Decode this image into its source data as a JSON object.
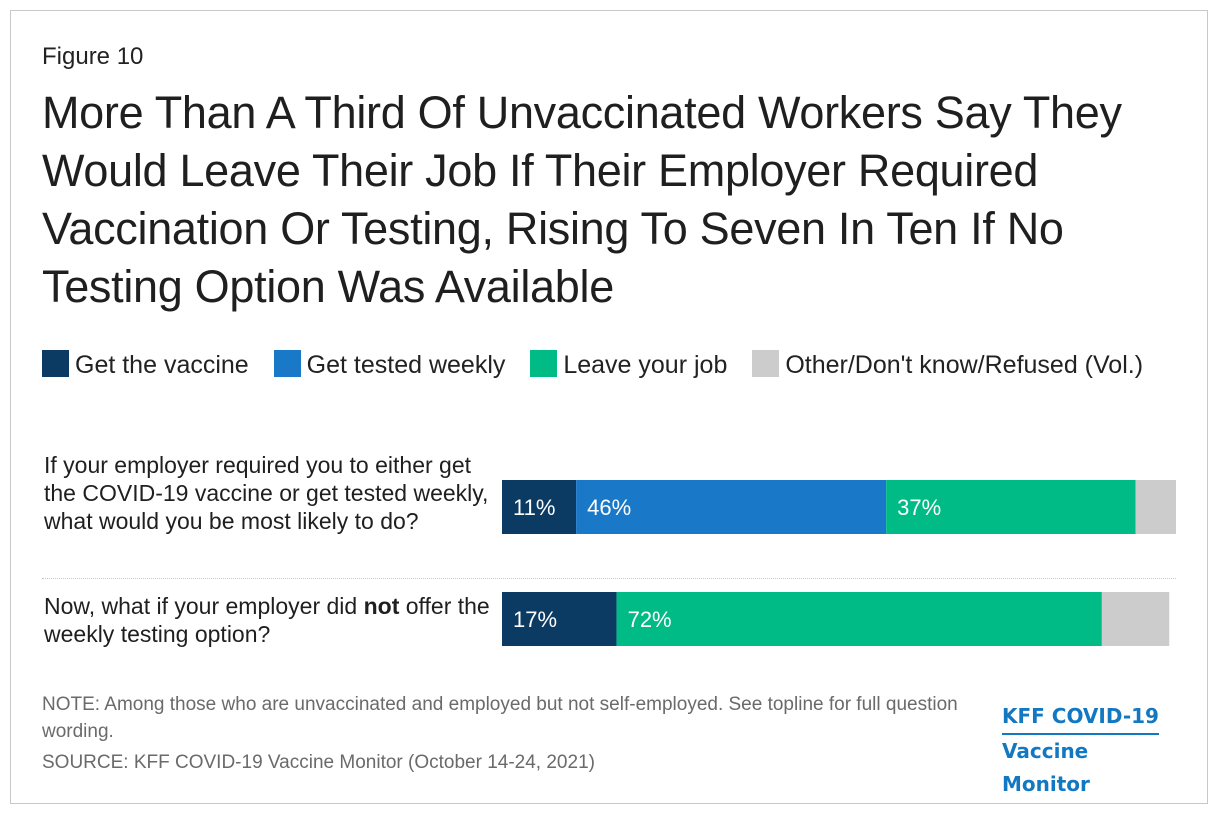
{
  "figure_label": "Figure 10",
  "title": "More Than A Third Of Unvaccinated Workers Say They Would Leave Their Job If Their Employer Required Vaccination Or Testing, Rising To Seven In Ten If No Testing Option Was Available",
  "legend": [
    {
      "label": "Get the vaccine",
      "color": "#0b3a63"
    },
    {
      "label": "Get tested weekly",
      "color": "#1978c8"
    },
    {
      "label": "Leave your job",
      "color": "#00bb86"
    },
    {
      "label": "Other/Don't know/Refused (Vol.)",
      "color": "#cccccc"
    }
  ],
  "questions": {
    "q1": "If your employer required you to either get the COVID-19 vaccine or get tested weekly, what would you be most likely to do?",
    "q2_prefix": "Now, what if your employer did ",
    "q2_bold": "not",
    "q2_suffix": " offer the weekly testing option?"
  },
  "chart_data": {
    "type": "bar",
    "orientation": "horizontal",
    "stacked": true,
    "categories": [
      "If your employer required you to either get the COVID-19 vaccine or get tested weekly, what would you be most likely to do?",
      "Now, what if your employer did not offer the weekly testing option?"
    ],
    "series": [
      {
        "name": "Get the vaccine",
        "color": "#0b3a63",
        "values": [
          11,
          17
        ],
        "labels": [
          "11%",
          "17%"
        ]
      },
      {
        "name": "Get tested weekly",
        "color": "#1978c8",
        "values": [
          46,
          0
        ],
        "labels": [
          "46%",
          ""
        ]
      },
      {
        "name": "Leave your job",
        "color": "#00bb86",
        "values": [
          37,
          72
        ],
        "labels": [
          "37%",
          "72%"
        ]
      },
      {
        "name": "Other/Don't know/Refused (Vol.)",
        "color": "#cccccc",
        "values": [
          6,
          10
        ],
        "labels": [
          "",
          ""
        ]
      }
    ],
    "xlim": [
      0,
      100
    ],
    "legend_position": "top",
    "grid": false
  },
  "footer": {
    "note": "NOTE: Among those who are unvaccinated and employed but not self-employed. See topline for full question wording.",
    "source": "SOURCE: KFF COVID-19 Vaccine Monitor (October 14-24, 2021)",
    "logo_line1": "KFF COVID-19",
    "logo_line2": "Vaccine Monitor",
    "logo_color": "#1378c2"
  }
}
